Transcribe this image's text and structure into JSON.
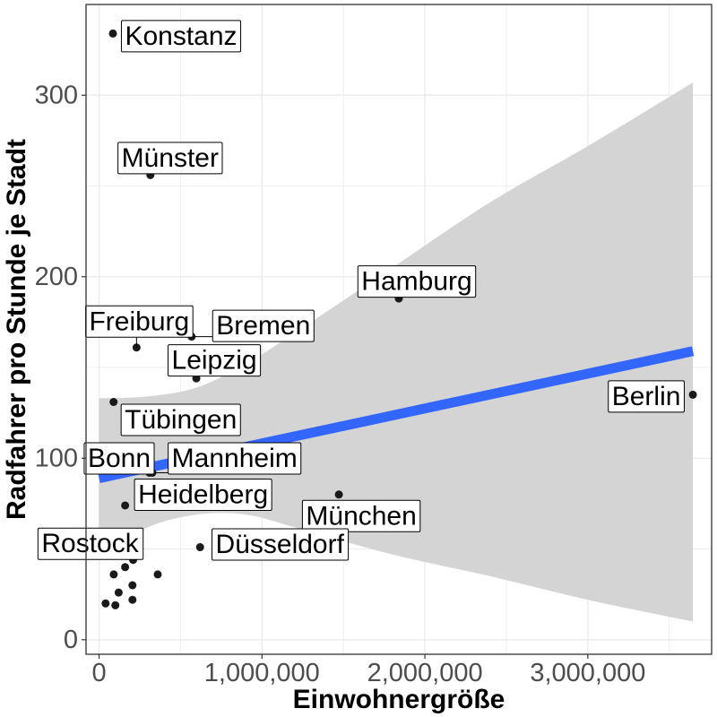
{
  "chart_data": {
    "type": "scatter",
    "title": "",
    "xlabel": "Einwohnergröße",
    "ylabel": "Radfahrer pro Stunde je Stadt",
    "xlim": [
      -80000,
      3760000
    ],
    "ylim": [
      -8,
      350
    ],
    "x_ticks": [
      0,
      1000000,
      2000000,
      3000000
    ],
    "x_tick_labels": [
      "0",
      "1,000,000",
      "2,000,000",
      "3,000,000"
    ],
    "y_ticks": [
      0,
      100,
      200,
      300
    ],
    "y_tick_labels": [
      "0",
      "100",
      "200",
      "300"
    ],
    "grid": true,
    "points": [
      {
        "label": "Konstanz",
        "x": 85000,
        "y": 334
      },
      {
        "label": "Münster",
        "x": 315000,
        "y": 256
      },
      {
        "label": "Hamburg",
        "x": 1840000,
        "y": 188
      },
      {
        "label": "Bremen",
        "x": 568000,
        "y": 167
      },
      {
        "label": "Freiburg",
        "x": 230000,
        "y": 161
      },
      {
        "label": "Leipzig",
        "x": 597000,
        "y": 144
      },
      {
        "label": "Berlin",
        "x": 3645000,
        "y": 135
      },
      {
        "label": "Tübingen",
        "x": 89000,
        "y": 131
      },
      {
        "label": "Mannheim",
        "x": 309000,
        "y": 92
      },
      {
        "label": "Bonn",
        "x": 327000,
        "y": 92
      },
      {
        "label": "München",
        "x": 1472000,
        "y": 80
      },
      {
        "label": "Heidelberg",
        "x": 160000,
        "y": 74
      },
      {
        "label": "Rostock",
        "x": 209000,
        "y": 44
      },
      {
        "label": "Düsseldorf",
        "x": 620000,
        "y": 51
      },
      {
        "label": "",
        "x": 360000,
        "y": 36
      },
      {
        "label": "",
        "x": 90000,
        "y": 36
      },
      {
        "label": "",
        "x": 160000,
        "y": 40
      },
      {
        "label": "",
        "x": 205000,
        "y": 30
      },
      {
        "label": "",
        "x": 120000,
        "y": 26
      },
      {
        "label": "",
        "x": 205000,
        "y": 22
      },
      {
        "label": "",
        "x": 40000,
        "y": 20
      },
      {
        "label": "",
        "x": 100000,
        "y": 19
      }
    ],
    "trend_line": {
      "type": "linear",
      "x": [
        0,
        3645000
      ],
      "y": [
        89,
        159
      ],
      "band_lower": [
        {
          "x": 0,
          "y": 46
        },
        {
          "x": 300000,
          "y": 62
        },
        {
          "x": 600000,
          "y": 69
        },
        {
          "x": 900000,
          "y": 69
        },
        {
          "x": 1200000,
          "y": 62
        },
        {
          "x": 1800000,
          "y": 47
        },
        {
          "x": 2400000,
          "y": 35
        },
        {
          "x": 3000000,
          "y": 22
        },
        {
          "x": 3645000,
          "y": 10
        }
      ],
      "band_upper": [
        {
          "x": 0,
          "y": 133
        },
        {
          "x": 300000,
          "y": 134
        },
        {
          "x": 600000,
          "y": 139
        },
        {
          "x": 900000,
          "y": 152
        },
        {
          "x": 1200000,
          "y": 169
        },
        {
          "x": 1800000,
          "y": 205
        },
        {
          "x": 2400000,
          "y": 241
        },
        {
          "x": 3000000,
          "y": 272
        },
        {
          "x": 3645000,
          "y": 307
        }
      ]
    },
    "colors": {
      "points": "#1a1a1a",
      "trend_line": "#3366ff",
      "band": "#d4d4d4",
      "grid": "#ebebeb",
      "panel_border": "#333333",
      "label_border": "#000000"
    }
  }
}
